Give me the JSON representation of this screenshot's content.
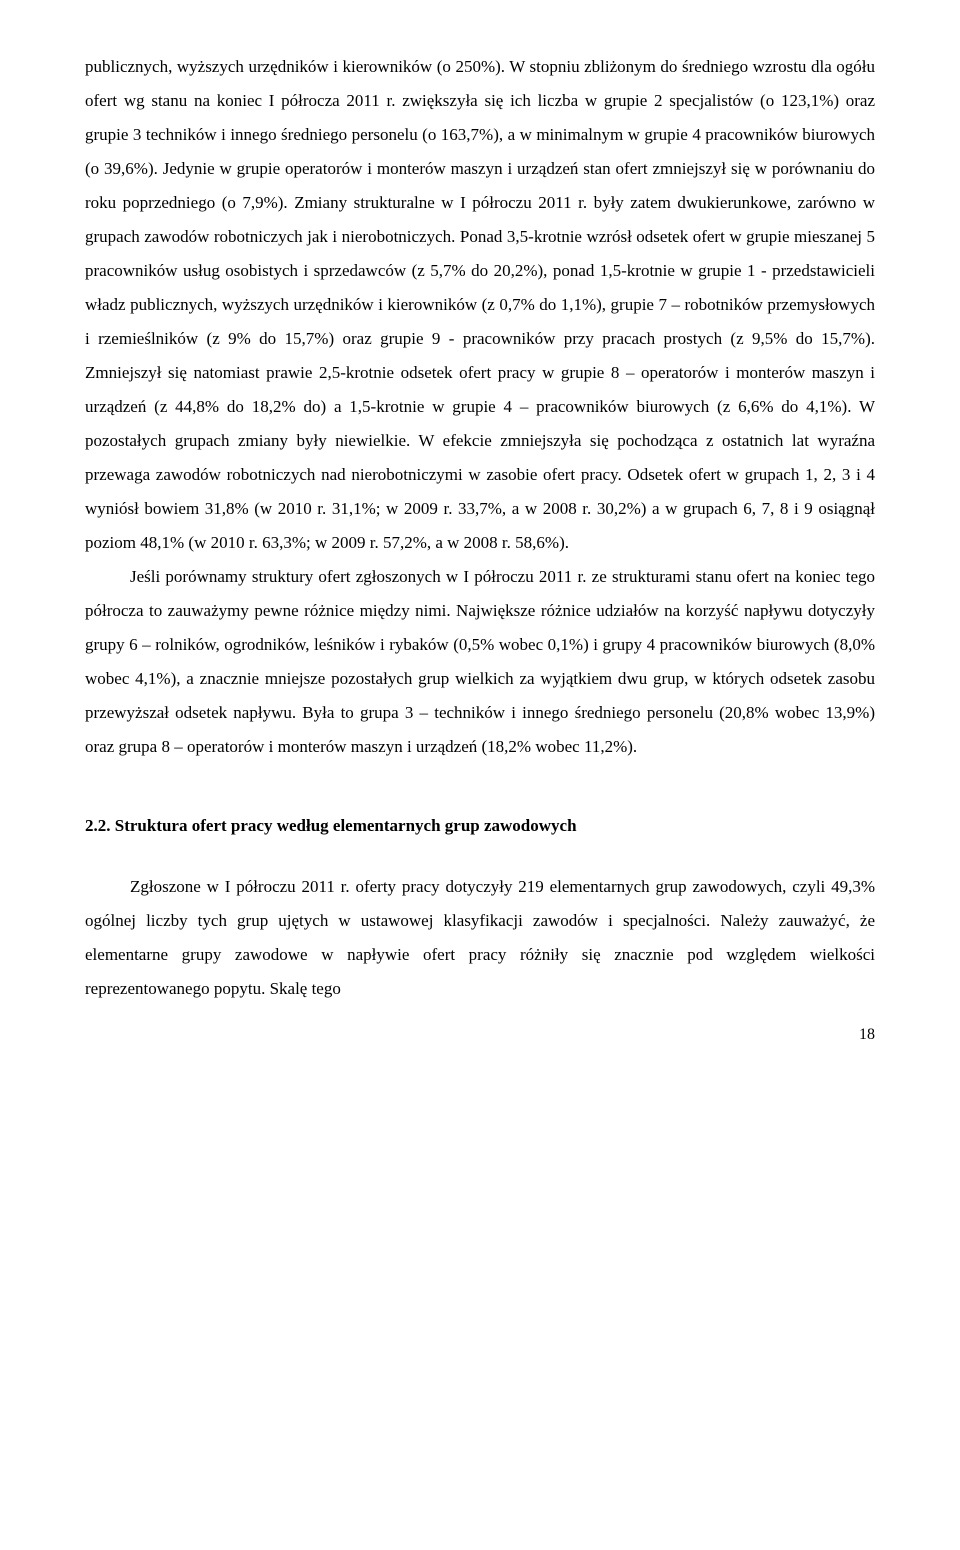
{
  "para1": "publicznych, wyższych urzędników i kierowników (o 250%). W stopniu zbliżonym do średniego wzrostu dla ogółu ofert wg stanu na koniec I półrocza 2011 r. zwiększyła się ich liczba w grupie 2 specjalistów (o 123,1%) oraz grupie 3 techników i innego średniego personelu (o 163,7%), a w minimalnym w grupie 4 pracowników biurowych (o 39,6%). Jedynie w grupie operatorów i monterów maszyn i urządzeń stan ofert zmniejszył się w porównaniu do roku poprzedniego (o 7,9%). Zmiany strukturalne w I półroczu 2011 r. były zatem dwukierunkowe, zarówno w grupach zawodów robotniczych jak i nierobotniczych. Ponad 3,5-krotnie wzrósł odsetek ofert w grupie mieszanej 5 pracowników usług osobistych i sprzedawców (z 5,7% do 20,2%), ponad 1,5-krotnie w grupie 1 - przedstawicieli władz publicznych, wyższych urzędników i kierowników (z 0,7% do 1,1%), grupie 7 – robotników przemysłowych i rzemieślników (z 9% do 15,7%) oraz grupie 9 - pracowników przy pracach prostych (z 9,5% do 15,7%). Zmniejszył się natomiast prawie 2,5-krotnie odsetek ofert pracy w grupie 8 – operatorów i monterów maszyn i urządzeń (z 44,8% do 18,2% do) a 1,5-krotnie w grupie 4 – pracowników biurowych (z 6,6% do 4,1%). W pozostałych grupach zmiany były niewielkie. W efekcie zmniejszyła się pochodząca z ostatnich lat wyraźna przewaga zawodów robotniczych nad nierobotniczymi w zasobie ofert pracy. Odsetek ofert w grupach 1, 2, 3 i 4 wyniósł bowiem 31,8% (w 2010 r. 31,1%; w 2009 r. 33,7%, a w 2008 r. 30,2%) a w grupach 6, 7, 8 i 9 osiągnął poziom 48,1% (w 2010 r. 63,3%; w 2009 r. 57,2%, a w 2008 r. 58,6%).",
  "para2": "Jeśli porównamy struktury ofert zgłoszonych w I półroczu 2011 r. ze strukturami stanu ofert na koniec tego półrocza to zauważymy pewne różnice między nimi. Największe różnice udziałów na korzyść napływu dotyczyły grupy 6 – rolników, ogrodników, leśników i rybaków (0,5% wobec 0,1%) i grupy 4 pracowników biurowych (8,0% wobec 4,1%), a znacznie mniejsze pozostałych grup wielkich za wyjątkiem dwu grup, w których odsetek zasobu przewyższał odsetek napływu. Była to grupa 3 – techników i innego średniego personelu (20,8% wobec 13,9%) oraz grupa 8 – operatorów i monterów maszyn i urządzeń (18,2% wobec 11,2%).",
  "heading": "2.2. Struktura ofert pracy według elementarnych grup zawodowych",
  "para3": "Zgłoszone w I półroczu 2011 r. oferty pracy dotyczyły 219 elementarnych grup zawodowych, czyli 49,3% ogólnej liczby tych grup ujętych w ustawowej klasyfikacji zawodów i specjalności. Należy zauważyć, że elementarne grupy zawodowe w napływie ofert pracy różniły się znacznie pod względem wielkości reprezentowanego popytu. Skalę tego",
  "page_number": "18"
}
